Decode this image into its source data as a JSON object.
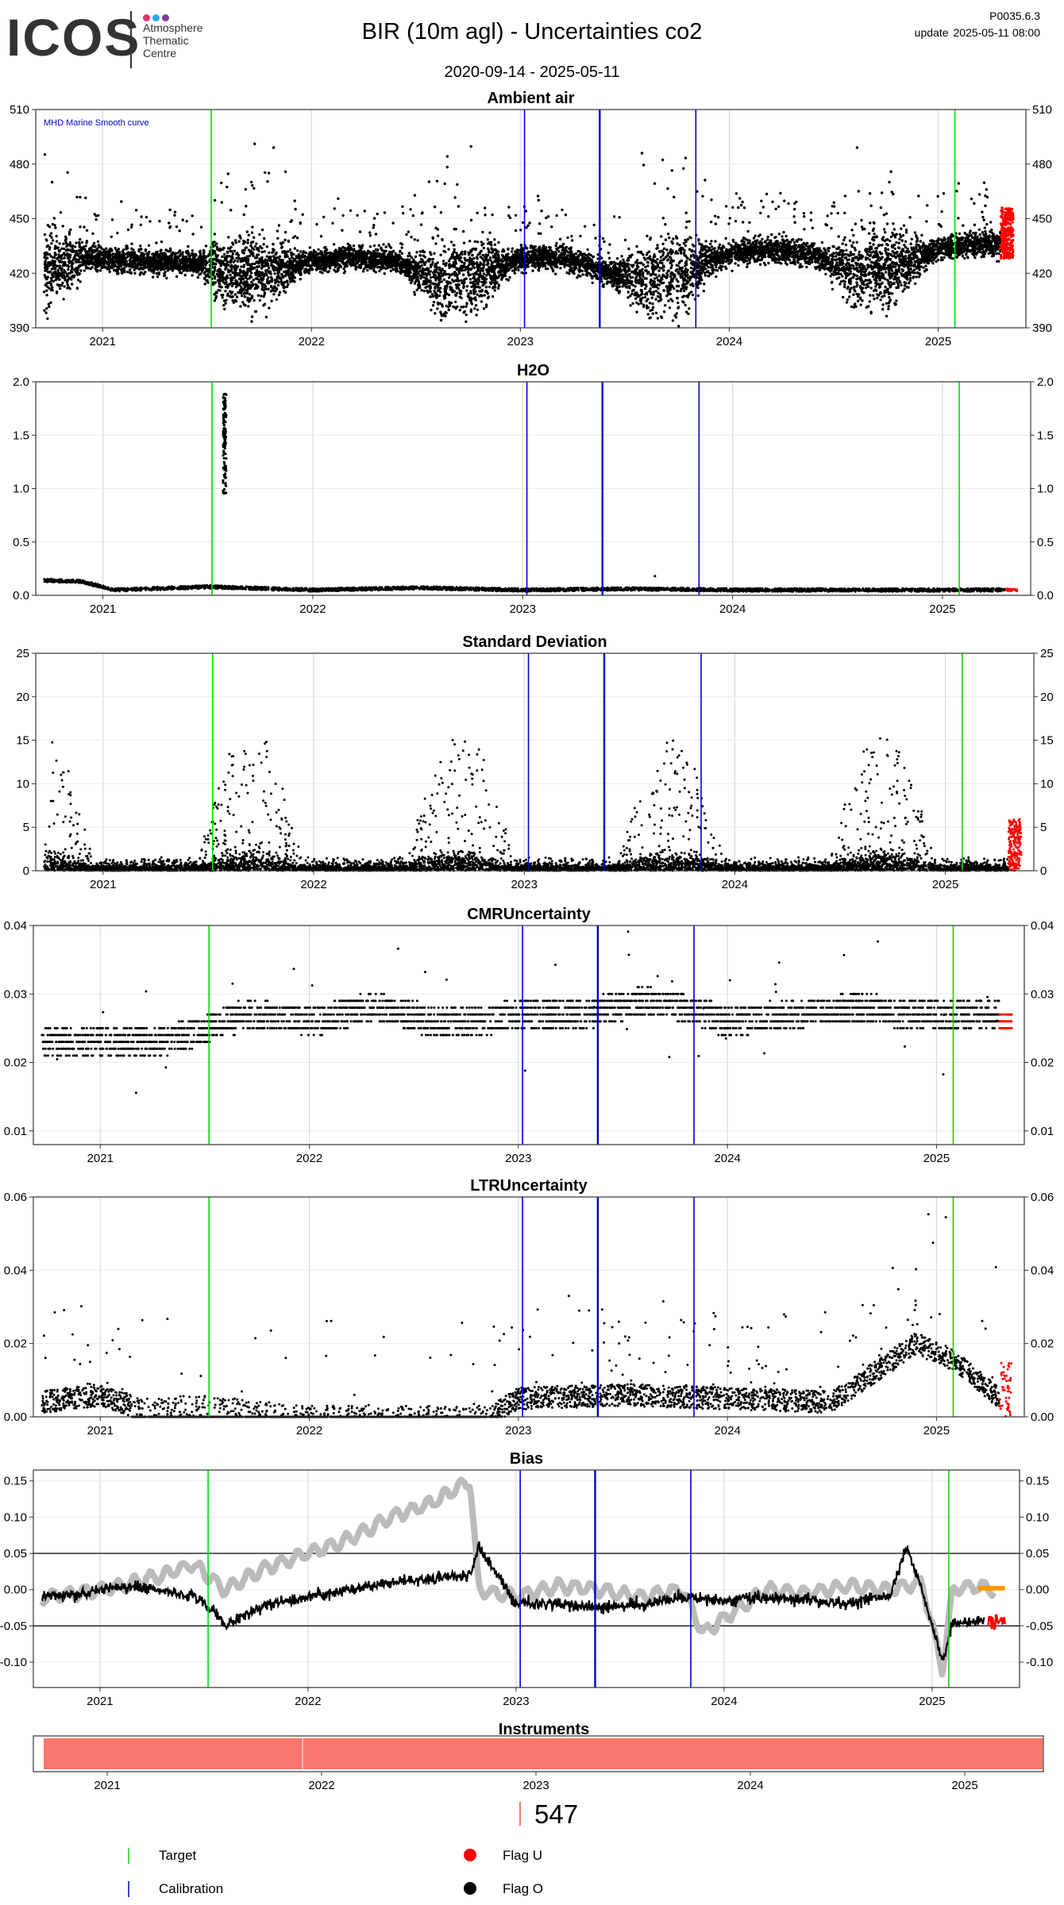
{
  "header": {
    "logo_text": "ICOS",
    "logo_subtitle": [
      "Atmosphere",
      "Thematic",
      "Centre"
    ],
    "logo_dot_colors": [
      "#e8336d",
      "#2ba6de",
      "#7b3f98"
    ],
    "title": "BIR  (10m agl) - Uncertainties co2",
    "date_range": "2020-09-14 - 2025-05-11",
    "version": "P0035.6.3",
    "update_label": "update",
    "update_value": "2025-05-11 08:00"
  },
  "colors": {
    "points": "#000000",
    "flag_u": "#ff0000",
    "target_line": "#00dd00",
    "calibration_line": "#0000cc",
    "bias_grey": "#bbbbbb",
    "bias_orange": "#ff9900",
    "instrument_bar": "#f8766d"
  },
  "chart_data": [
    {
      "id": "ambient",
      "title": "Ambient air",
      "type": "scatter",
      "x_ticks": [
        "2021",
        "2022",
        "2023",
        "2024",
        "2025"
      ],
      "ylim": [
        390,
        510
      ],
      "y_ticks": [
        "390",
        "420",
        "450",
        "480",
        "510"
      ],
      "annotation": "MHD Marine Smooth curve",
      "target_lines": [
        2021.52,
        2025.08
      ],
      "calibration_lines": [
        2023.02,
        2023.38,
        2023.84
      ],
      "series": [
        {
          "x": [
            2020.72,
            2020.9,
            2021.1,
            2021.3,
            2021.5,
            2021.6,
            2021.8,
            2022.0,
            2022.2,
            2022.4,
            2022.6,
            2022.8,
            2023.0,
            2023.2,
            2023.4,
            2023.6,
            2023.8,
            2024.0,
            2024.2,
            2024.4,
            2024.6,
            2024.8,
            2025.0,
            2025.2
          ],
          "y": [
            422,
            428,
            427,
            426,
            425,
            420,
            421,
            426,
            429,
            426,
            416,
            419,
            428,
            429,
            421,
            416,
            421,
            431,
            433,
            430,
            421,
            423,
            433,
            436
          ]
        }
      ],
      "flag_u_x_from": 2025.3
    },
    {
      "id": "h2o",
      "title": "H2O",
      "type": "scatter",
      "x_ticks": [
        "2021",
        "2022",
        "2023",
        "2024",
        "2025"
      ],
      "ylim": [
        0,
        2.0
      ],
      "y_ticks": [
        "0.0",
        "0.5",
        "1.0",
        "1.5",
        "2.0"
      ],
      "target_lines": [
        2021.52,
        2025.08
      ],
      "calibration_lines": [
        2023.02,
        2023.38,
        2023.84
      ],
      "series": [
        {
          "x": [
            2020.72,
            2020.9,
            2021.05,
            2021.2,
            2021.5,
            2022.0,
            2022.5,
            2023.0,
            2023.5,
            2024.0,
            2024.5,
            2025.0,
            2025.3
          ],
          "y": [
            0.14,
            0.13,
            0.05,
            0.06,
            0.08,
            0.05,
            0.07,
            0.05,
            0.06,
            0.05,
            0.05,
            0.05,
            0.05
          ]
        }
      ],
      "spike": {
        "x": 2021.58,
        "y_min": 0.95,
        "y_max": 1.9
      },
      "flag_u_x_from": 2025.3
    },
    {
      "id": "stddev",
      "title": "Standard Deviation",
      "type": "scatter",
      "x_ticks": [
        "2021",
        "2022",
        "2023",
        "2024",
        "2025"
      ],
      "ylim": [
        0,
        25
      ],
      "y_ticks": [
        "0",
        "5",
        "10",
        "15",
        "20",
        "25"
      ],
      "target_lines": [
        2021.52,
        2025.08
      ],
      "calibration_lines": [
        2023.02,
        2023.38,
        2023.84
      ],
      "series": [
        {
          "x": [
            2020.8,
            2021.0,
            2021.3,
            2021.5,
            2021.7,
            2022.0,
            2022.4,
            2022.6,
            2022.8,
            2023.0,
            2023.4,
            2023.6,
            2023.8,
            2024.0,
            2024.4,
            2024.6,
            2024.8,
            2025.0,
            2025.3
          ],
          "y": [
            3,
            1,
            2,
            10,
            6,
            1,
            3,
            9,
            2,
            1,
            6,
            12,
            2,
            1,
            4,
            10,
            3,
            1,
            4
          ]
        }
      ],
      "flag_u_x_from": 2025.3
    },
    {
      "id": "cmr",
      "title": "CMRUncertainty",
      "type": "scatter",
      "x_ticks": [
        "2021",
        "2022",
        "2023",
        "2024",
        "2025"
      ],
      "ylim": [
        0.008,
        0.04
      ],
      "y_ticks": [
        "0.01",
        "0.02",
        "0.03",
        "0.04"
      ],
      "target_lines": [
        2021.52,
        2025.08
      ],
      "calibration_lines": [
        2023.02,
        2023.38,
        2023.84
      ],
      "series": [
        {
          "x": [
            2020.72,
            2021.0,
            2021.3,
            2021.5,
            2021.7,
            2022.0,
            2022.3,
            2022.6,
            2022.8,
            2023.0,
            2023.3,
            2023.6,
            2023.8,
            2024.0,
            2024.3,
            2024.6,
            2024.9,
            2025.2
          ],
          "y": [
            0.023,
            0.023,
            0.023,
            0.025,
            0.027,
            0.026,
            0.028,
            0.026,
            0.026,
            0.027,
            0.027,
            0.029,
            0.028,
            0.026,
            0.027,
            0.028,
            0.027,
            0.027
          ]
        }
      ],
      "flag_u_x_from": 2025.3
    },
    {
      "id": "ltr",
      "title": "LTRUncertainty",
      "type": "scatter",
      "x_ticks": [
        "2021",
        "2022",
        "2023",
        "2024",
        "2025"
      ],
      "ylim": [
        0,
        0.06
      ],
      "y_ticks": [
        "0.00",
        "0.02",
        "0.04",
        "0.06"
      ],
      "target_lines": [
        2021.52,
        2025.08
      ],
      "calibration_lines": [
        2023.02,
        2023.38,
        2023.84
      ],
      "series": [
        {
          "x": [
            2020.72,
            2021.0,
            2021.2,
            2021.5,
            2022.0,
            2022.5,
            2022.85,
            2023.0,
            2023.5,
            2024.0,
            2024.5,
            2024.9,
            2025.1,
            2025.3
          ],
          "y": [
            0.004,
            0.006,
            0.002,
            0.003,
            0.0,
            0.0,
            0.0,
            0.005,
            0.006,
            0.005,
            0.004,
            0.02,
            0.015,
            0.005
          ]
        }
      ],
      "flag_u_x_from": 2025.3
    },
    {
      "id": "bias",
      "title": "Bias",
      "type": "line",
      "x_ticks": [
        "2021",
        "2022",
        "2023",
        "2024",
        "2025"
      ],
      "ylim": [
        -0.135,
        0.165
      ],
      "y_ticks": [
        "-0.10",
        "-0.05",
        "0.00",
        "0.05",
        "0.10",
        "0.15"
      ],
      "hlines": [
        0.05,
        -0.05
      ],
      "target_lines": [
        2021.52,
        2025.08
      ],
      "calibration_lines": [
        2023.02,
        2023.38,
        2023.84
      ],
      "series": [
        {
          "name_style": "grey",
          "x": [
            2020.72,
            2020.9,
            2021.1,
            2021.3,
            2021.45,
            2021.6,
            2021.8,
            2022.0,
            2022.2,
            2022.4,
            2022.6,
            2022.78,
            2022.82,
            2023.0,
            2023.2,
            2023.4,
            2023.6,
            2023.8,
            2023.9,
            2024.0,
            2024.2,
            2024.4,
            2024.6,
            2024.8,
            2024.95,
            2025.05,
            2025.1,
            2025.2,
            2025.3
          ],
          "y": [
            -0.01,
            -0.005,
            0.005,
            0.02,
            0.035,
            0.0,
            0.03,
            0.05,
            0.07,
            0.1,
            0.12,
            0.15,
            0.0,
            -0.01,
            0.005,
            0.0,
            -0.01,
            0.0,
            -0.06,
            -0.04,
            0.0,
            -0.005,
            0.005,
            0.0,
            0.01,
            -0.11,
            0.0,
            0.005,
            0.0
          ]
        },
        {
          "name_style": "black",
          "x": [
            2020.72,
            2020.9,
            2021.1,
            2021.3,
            2021.45,
            2021.55,
            2021.6,
            2021.8,
            2022.0,
            2022.2,
            2022.4,
            2022.6,
            2022.78,
            2022.82,
            2023.0,
            2023.2,
            2023.4,
            2023.6,
            2023.8,
            2024.0,
            2024.2,
            2024.4,
            2024.6,
            2024.8,
            2024.88,
            2024.95,
            2025.05,
            2025.1,
            2025.2,
            2025.25
          ],
          "y": [
            -0.01,
            -0.005,
            0.005,
            0.0,
            -0.01,
            -0.03,
            -0.05,
            -0.02,
            -0.01,
            0.0,
            0.01,
            0.015,
            0.02,
            0.06,
            -0.02,
            -0.02,
            -0.025,
            -0.02,
            -0.01,
            -0.015,
            -0.01,
            -0.015,
            -0.02,
            -0.005,
            0.06,
            0.0,
            -0.1,
            -0.04,
            -0.05,
            -0.04
          ]
        }
      ],
      "orange_x": [
        2025.22,
        2025.35
      ],
      "orange_y": 0.002,
      "flag_u_x": [
        2025.27,
        2025.35
      ],
      "flag_u_y": -0.045
    }
  ],
  "instruments": {
    "title": "Instruments",
    "x_ticks": [
      "2021",
      "2022",
      "2023",
      "2024",
      "2025"
    ],
    "count": "547"
  },
  "legend": {
    "target": "Target",
    "calibration": "Calibration",
    "flag_u": "Flag U",
    "flag_o": "Flag O"
  }
}
